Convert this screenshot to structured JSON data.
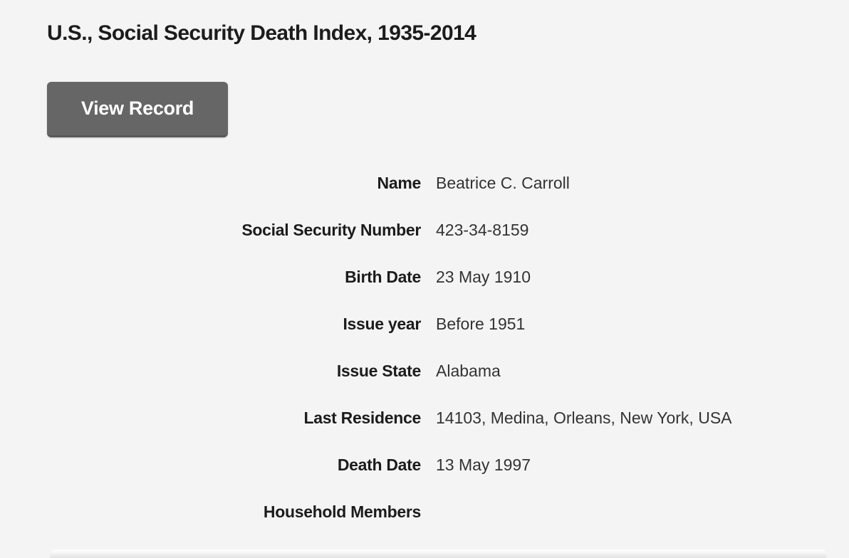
{
  "page": {
    "title": "U.S., Social Security Death Index, 1935-2014",
    "background_color": "#f4f4f4"
  },
  "actions": {
    "view_record_label": "View Record",
    "button_color": "#666666",
    "button_text_color": "#ffffff"
  },
  "record": {
    "fields": [
      {
        "label": "Name",
        "value": "Beatrice C. Carroll"
      },
      {
        "label": "Social Security Number",
        "value": "423-34-8159"
      },
      {
        "label": "Birth Date",
        "value": "23 May 1910"
      },
      {
        "label": "Issue year",
        "value": "Before 1951"
      },
      {
        "label": "Issue State",
        "value": "Alabama"
      },
      {
        "label": "Last Residence",
        "value": "14103, Medina, Orleans, New York, USA"
      },
      {
        "label": "Death Date",
        "value": "13 May 1997"
      },
      {
        "label": "Household Members",
        "value": ""
      }
    ]
  }
}
